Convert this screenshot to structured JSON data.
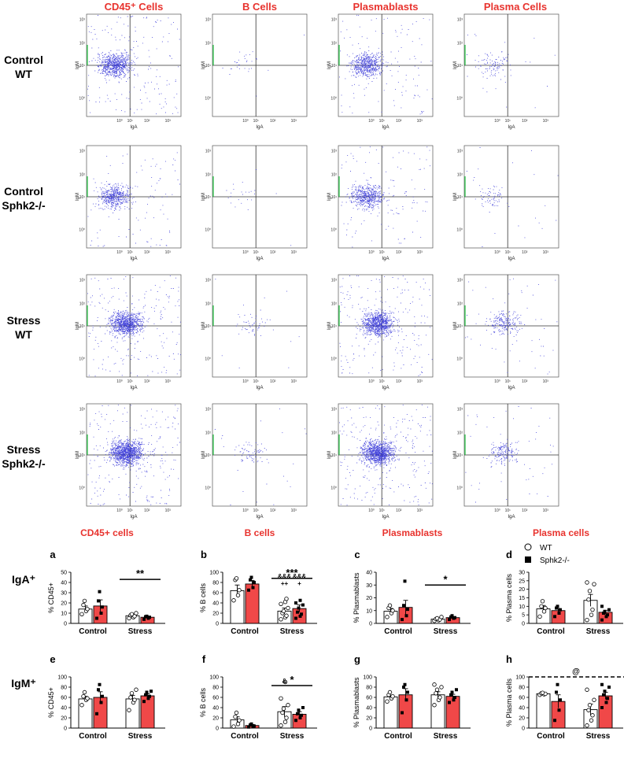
{
  "flow_headers": [
    "CD45⁺ Cells",
    "B Cells",
    "Plasmablasts",
    "Plasma Cells"
  ],
  "flow_rows": [
    {
      "line1": "Control",
      "line2": "WT"
    },
    {
      "line1": "Control",
      "line2": "Sphk2-/-"
    },
    {
      "line1": "Stress",
      "line2": "WT"
    },
    {
      "line1": "Stress",
      "line2": "Sphk2-/-"
    }
  ],
  "flow_axes": {
    "xlabel": "IgA",
    "ylabel": "IgM",
    "x_ticks": [
      "10⁰",
      "10¹",
      "10²",
      "10³"
    ],
    "y_ticks": [
      "10⁰",
      "10¹",
      "10²",
      "10³"
    ]
  },
  "flow_density": [
    [
      900,
      30,
      700,
      120
    ],
    [
      600,
      25,
      650,
      90
    ],
    [
      1100,
      60,
      1100,
      260
    ],
    [
      1400,
      90,
      1300,
      220
    ]
  ],
  "bar_headers": [
    "CD45+ cells",
    "B cells",
    "Plasmablasts",
    "Plasma cells"
  ],
  "row_labels": [
    "IgA⁺",
    "IgM⁺"
  ],
  "legend": {
    "wt": "WT",
    "ko": "Sphk2-/-"
  },
  "colors": {
    "header_red": "#e8332e",
    "ko_fill": "#f04848",
    "flow_dot": "#2a2ad6",
    "gate_line": "#333333"
  },
  "chart_data": [
    {
      "panel": "a",
      "type": "bar",
      "title": "CD45+ cells",
      "ylabel": "% CD45+",
      "ylim": [
        0,
        50
      ],
      "yticks": [
        0,
        10,
        20,
        30,
        40,
        50
      ],
      "categories": [
        "Control",
        "Stress"
      ],
      "series": [
        {
          "name": "WT",
          "means": [
            14,
            7.5
          ],
          "sems": [
            3,
            1.2
          ],
          "points": [
            [
              9,
              12,
              14,
              18,
              22
            ],
            [
              5,
              6,
              7,
              8,
              9,
              10
            ]
          ]
        },
        {
          "name": "Sphk2-/-",
          "means": [
            17,
            6
          ],
          "sems": [
            6,
            0.8
          ],
          "points": [
            [
              5,
              10,
              16,
              22,
              31
            ],
            [
              4,
              5,
              6,
              6.5,
              7
            ]
          ]
        }
      ],
      "sig": {
        "text": "**",
        "group": 1,
        "y": 43
      },
      "marks": []
    },
    {
      "panel": "b",
      "type": "bar",
      "title": "B cells",
      "ylabel": "% B cells",
      "ylim": [
        0,
        100
      ],
      "yticks": [
        0,
        20,
        40,
        60,
        80,
        100
      ],
      "categories": [
        "Control",
        "Stress"
      ],
      "series": [
        {
          "name": "WT",
          "means": [
            64,
            24
          ],
          "sems": [
            11,
            6
          ],
          "points": [
            [
              45,
              55,
              65,
              85,
              88
            ],
            [
              8,
              12,
              15,
              20,
              24,
              30,
              38,
              42,
              48
            ]
          ]
        },
        {
          "name": "Sphk2-/-",
          "means": [
            77,
            29
          ],
          "sems": [
            7,
            7
          ],
          "points": [
            [
              65,
              70,
              80,
              85,
              90
            ],
            [
              10,
              14,
              18,
              22,
              30,
              36,
              40,
              45
            ]
          ]
        }
      ],
      "sig": {
        "text": "***",
        "group": 1,
        "y": 88
      },
      "marks": [
        {
          "series": 0,
          "lines": [
            "&&&",
            "++"
          ]
        },
        {
          "series": 1,
          "lines": [
            "&&&",
            "+"
          ]
        }
      ]
    },
    {
      "panel": "c",
      "type": "bar",
      "title": "Plasmablasts",
      "ylabel": "% Plasmablasts",
      "ylim": [
        0,
        40
      ],
      "yticks": [
        0,
        10,
        20,
        30,
        40
      ],
      "categories": [
        "Control",
        "Stress"
      ],
      "series": [
        {
          "name": "WT",
          "means": [
            9.5,
            3.3
          ],
          "sems": [
            2.2,
            0.6
          ],
          "points": [
            [
              5,
              8,
              10,
              12,
              14
            ],
            [
              2,
              2.5,
              3,
              3.5,
              4,
              5
            ]
          ]
        },
        {
          "name": "Sphk2-/-",
          "means": [
            12.5,
            4.5
          ],
          "sems": [
            5.5,
            0.7
          ],
          "points": [
            [
              3,
              6,
              11,
              14,
              33
            ],
            [
              3,
              4,
              4.5,
              5,
              6
            ]
          ]
        }
      ],
      "sig": {
        "text": "*",
        "group": 1,
        "y": 30
      },
      "marks": []
    },
    {
      "panel": "d",
      "type": "bar",
      "title": "Plasma cells",
      "ylabel": "% Plasma cells",
      "ylim": [
        0,
        30
      ],
      "yticks": [
        0,
        5,
        10,
        15,
        20,
        25,
        30
      ],
      "categories": [
        "Control",
        "Stress"
      ],
      "series": [
        {
          "name": "WT",
          "means": [
            8.5,
            13.5
          ],
          "sems": [
            2,
            3.5
          ],
          "points": [
            [
              4,
              7,
              9,
              10,
              13
            ],
            [
              2,
              5,
              8,
              14,
              19,
              23,
              24
            ]
          ]
        },
        {
          "name": "Sphk2-/-",
          "means": [
            7.5,
            6.5
          ],
          "sems": [
            1.2,
            1.2
          ],
          "points": [
            [
              4,
              6,
              8,
              9,
              10
            ],
            [
              2,
              4,
              5,
              6,
              7,
              8,
              10
            ]
          ]
        }
      ],
      "sig": null,
      "marks": []
    },
    {
      "panel": "e",
      "type": "bar",
      "title": "CD45+ cells",
      "ylabel": "% CD45+",
      "ylim": [
        0,
        100
      ],
      "yticks": [
        0,
        20,
        40,
        60,
        80,
        100
      ],
      "categories": [
        "Control",
        "Stress"
      ],
      "series": [
        {
          "name": "WT",
          "means": [
            57,
            57
          ],
          "sems": [
            5,
            7
          ],
          "points": [
            [
              45,
              55,
              58,
              62,
              70
            ],
            [
              35,
              50,
              55,
              60,
              68,
              75
            ]
          ]
        },
        {
          "name": "Sphk2-/-",
          "means": [
            60,
            63
          ],
          "sems": [
            11,
            4
          ],
          "points": [
            [
              28,
              50,
              62,
              75,
              85
            ],
            [
              52,
              58,
              62,
              65,
              70,
              72
            ]
          ]
        }
      ],
      "sig": null,
      "marks": []
    },
    {
      "panel": "f",
      "type": "bar",
      "title": "B cells",
      "ylabel": "% B cells",
      "ylim": [
        0,
        100
      ],
      "yticks": [
        0,
        20,
        40,
        60,
        80,
        100
      ],
      "categories": [
        "Control",
        "Stress"
      ],
      "series": [
        {
          "name": "WT",
          "means": [
            16,
            32
          ],
          "sems": [
            6,
            10
          ],
          "points": [
            [
              3,
              8,
              15,
              22,
              30
            ],
            [
              5,
              12,
              20,
              30,
              38,
              45,
              58,
              90
            ]
          ]
        },
        {
          "name": "Sphk2-/-",
          "means": [
            5,
            27
          ],
          "sems": [
            2,
            5
          ],
          "points": [
            [
              2,
              3,
              4,
              6,
              8
            ],
            [
              15,
              20,
              25,
              28,
              35,
              40
            ]
          ]
        }
      ],
      "sig": {
        "text": "*",
        "group": 1,
        "y": 83
      },
      "marks": [
        {
          "series": 0,
          "lines": [
            "&"
          ]
        }
      ]
    },
    {
      "panel": "g",
      "type": "bar",
      "title": "Plasmablasts",
      "ylabel": "% Plasmablasts",
      "ylim": [
        0,
        100
      ],
      "yticks": [
        0,
        20,
        40,
        60,
        80,
        100
      ],
      "categories": [
        "Control",
        "Stress"
      ],
      "series": [
        {
          "name": "WT",
          "means": [
            61,
            65
          ],
          "sems": [
            3,
            6
          ],
          "points": [
            [
              52,
              58,
              62,
              65,
              70
            ],
            [
              45,
              55,
              60,
              68,
              75,
              80,
              85
            ]
          ]
        },
        {
          "name": "Sphk2-/-",
          "means": [
            65,
            62
          ],
          "sems": [
            12,
            4
          ],
          "points": [
            [
              30,
              55,
              70,
              80,
              85
            ],
            [
              50,
              55,
              60,
              65,
              70,
              75
            ]
          ]
        }
      ],
      "sig": null,
      "marks": []
    },
    {
      "panel": "h",
      "type": "bar",
      "title": "Plasma cells",
      "ylabel": "% Plasma cells",
      "ylim": [
        0,
        100
      ],
      "yticks": [
        0,
        20,
        40,
        60,
        80,
        100
      ],
      "categories": [
        "Control",
        "Stress"
      ],
      "series": [
        {
          "name": "WT",
          "means": [
            67,
            36
          ],
          "sems": [
            1,
            11
          ],
          "points": [
            [
              65,
              66,
              67,
              68,
              69
            ],
            [
              5,
              15,
              25,
              35,
              45,
              55,
              75
            ]
          ]
        },
        {
          "name": "Sphk2-/-",
          "means": [
            52,
            63
          ],
          "sems": [
            13,
            7
          ],
          "points": [
            [
              15,
              35,
              55,
              70,
              85
            ],
            [
              40,
              50,
              58,
              65,
              72,
              80,
              85
            ]
          ]
        }
      ],
      "sig": null,
      "dashed": {
        "y": 100,
        "label": "@"
      },
      "marks": []
    }
  ]
}
